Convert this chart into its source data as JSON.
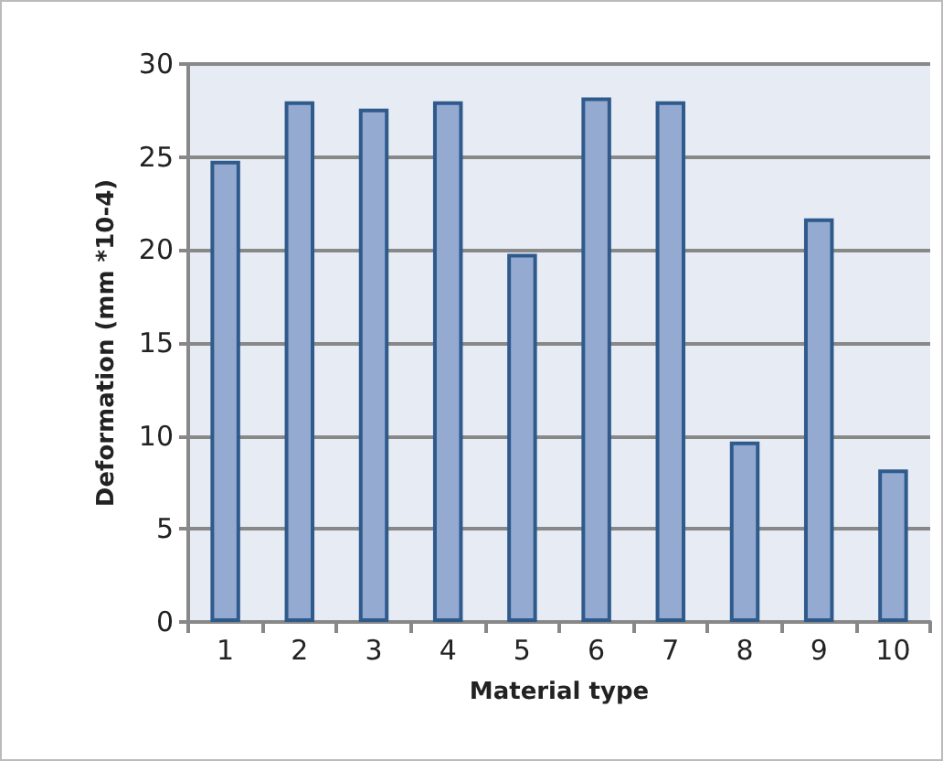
{
  "chart_data": {
    "type": "bar",
    "xlabel": "Material type",
    "ylabel": "Deformation (mm *10-4)",
    "categories": [
      "1",
      "2",
      "3",
      "4",
      "5",
      "6",
      "7",
      "8",
      "9",
      "10"
    ],
    "values": [
      24.8,
      28.0,
      27.6,
      28.0,
      19.8,
      28.2,
      28.0,
      9.7,
      21.7,
      8.2
    ],
    "color": "#95aad1",
    "ylim": [
      0,
      30
    ],
    "yticks": [
      0,
      5,
      10,
      15,
      20,
      25,
      30
    ],
    "grid": "y"
  }
}
